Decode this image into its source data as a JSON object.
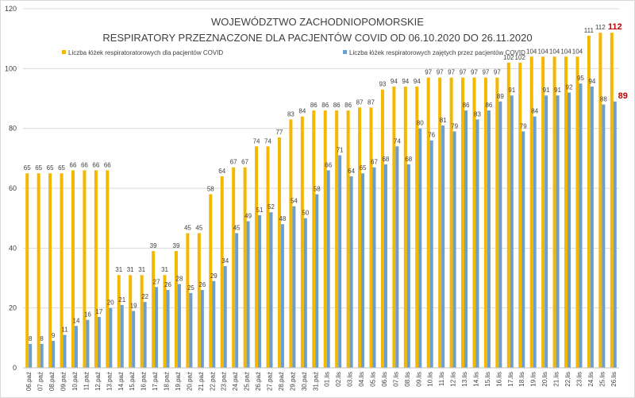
{
  "chart_data": {
    "type": "bar",
    "title": "WOJEWÓDZTWO ZACHODNIOPOMORSKIE",
    "subtitle": "RESPIRATORY PRZEZNACZONE DLA PACJENTÓW COVID OD 06.10.2020 DO 26.11.2020",
    "categories": [
      "06.paź",
      "07.paź",
      "08.paź",
      "09.paź",
      "10.paź",
      "11.paź",
      "12.paź",
      "13.paź",
      "14.paź",
      "15.paź",
      "16.paź",
      "17.paź",
      "18.paź",
      "19.paź",
      "20.paź",
      "21.paź",
      "22.paź",
      "23.paź",
      "24.paź",
      "25.paź",
      "26.paź",
      "27.paź",
      "28.paź",
      "29.paź",
      "30.paź",
      "31.paź",
      "01.lis",
      "02.lis",
      "03.lis",
      "04.lis",
      "05.lis",
      "06.lis",
      "07.lis",
      "08.lis",
      "09.lis",
      "10.lis",
      "11.lis",
      "12.lis",
      "13.lis",
      "14.lis",
      "15.lis",
      "16.lis",
      "17.lis",
      "18.lis",
      "19.lis",
      "20.lis",
      "21.lis",
      "22.lis",
      "23.lis",
      "24.lis",
      "25.lis",
      "26.lis"
    ],
    "series": [
      {
        "name": "Liczba łóżek respiratoratorowych dla pacjentów COVID",
        "color": "#f5b800",
        "values": [
          65,
          65,
          65,
          65,
          66,
          66,
          66,
          66,
          31,
          31,
          31,
          39,
          31,
          39,
          45,
          45,
          58,
          64,
          67,
          67,
          74,
          74,
          77,
          83,
          84,
          86,
          86,
          86,
          86,
          87,
          87,
          93,
          94,
          94,
          94,
          97,
          97,
          97,
          97,
          97,
          97,
          97,
          102,
          102,
          104,
          104,
          104,
          104,
          104,
          111,
          112,
          112
        ]
      },
      {
        "name": "Liczba łóżek respiratorowych zajętych przez pacjentów COVID",
        "color": "#6a9fd0",
        "values": [
          8,
          8,
          9,
          11,
          14,
          16,
          17,
          20,
          21,
          19,
          22,
          27,
          26,
          28,
          25,
          26,
          29,
          34,
          45,
          49,
          51,
          52,
          48,
          54,
          50,
          58,
          66,
          71,
          64,
          65,
          67,
          68,
          74,
          68,
          80,
          76,
          81,
          79,
          86,
          83,
          86,
          89,
          91,
          79,
          84,
          91,
          91,
          92,
          95,
          94,
          88,
          89
        ]
      }
    ],
    "ylim": [
      0,
      120
    ],
    "yticks": [
      0,
      20,
      40,
      60,
      80,
      100,
      120
    ],
    "grid": true,
    "last_label_color": "#c00000"
  }
}
